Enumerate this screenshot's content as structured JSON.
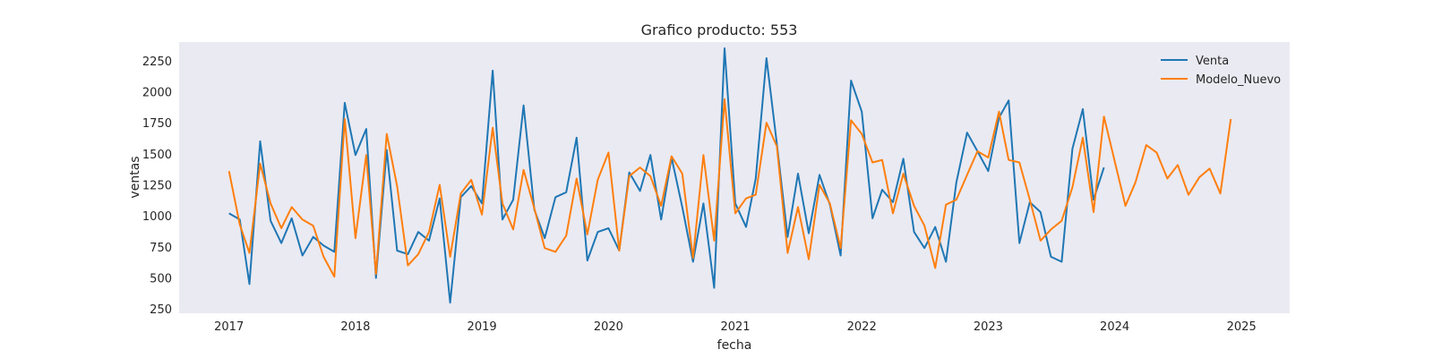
{
  "chart_data": {
    "type": "line",
    "title": "Grafico producto: 553",
    "xlabel": "fecha",
    "ylabel": "ventas",
    "xlim": [
      "2016-08-10",
      "2025-05-20"
    ],
    "ylim": [
      215,
      2400
    ],
    "x_ticks": [
      "2017",
      "2018",
      "2019",
      "2020",
      "2021",
      "2022",
      "2023",
      "2024",
      "2025"
    ],
    "y_ticks": [
      250,
      500,
      750,
      1000,
      1250,
      1500,
      1750,
      2000,
      2250
    ],
    "grid": false,
    "legend_position": "top-right",
    "background": "#EAEAF2",
    "series": [
      {
        "name": "Venta",
        "color": "#1F77B4",
        "x": [
          "2017-01",
          "2017-02",
          "2017-03",
          "2017-04",
          "2017-05",
          "2017-06",
          "2017-07",
          "2017-08",
          "2017-09",
          "2017-10",
          "2017-11",
          "2017-12",
          "2018-01",
          "2018-02",
          "2018-03",
          "2018-04",
          "2018-05",
          "2018-06",
          "2018-07",
          "2018-08",
          "2018-09",
          "2018-10",
          "2018-11",
          "2018-12",
          "2019-01",
          "2019-02",
          "2019-03",
          "2019-04",
          "2019-05",
          "2019-06",
          "2019-07",
          "2019-08",
          "2019-09",
          "2019-10",
          "2019-11",
          "2019-12",
          "2020-01",
          "2020-02",
          "2020-03",
          "2020-04",
          "2020-05",
          "2020-06",
          "2020-07",
          "2020-08",
          "2020-09",
          "2020-10",
          "2020-11",
          "2020-12",
          "2021-01",
          "2021-02",
          "2021-03",
          "2021-04",
          "2021-05",
          "2021-06",
          "2021-07",
          "2021-08",
          "2021-09",
          "2021-10",
          "2021-11",
          "2021-12",
          "2022-01",
          "2022-02",
          "2022-03",
          "2022-04",
          "2022-05",
          "2022-06",
          "2022-07",
          "2022-08",
          "2022-09",
          "2022-10",
          "2022-11",
          "2022-12",
          "2023-01",
          "2023-02",
          "2023-03",
          "2023-04",
          "2023-05",
          "2023-06",
          "2023-07",
          "2023-08",
          "2023-09",
          "2023-10",
          "2023-11",
          "2023-12"
        ],
        "values": [
          1020,
          970,
          450,
          1600,
          960,
          780,
          980,
          680,
          830,
          760,
          710,
          1910,
          1490,
          1700,
          500,
          1530,
          720,
          690,
          870,
          800,
          1140,
          300,
          1150,
          1240,
          1100,
          2170,
          970,
          1130,
          1890,
          1050,
          820,
          1150,
          1190,
          1630,
          640,
          870,
          900,
          720,
          1350,
          1200,
          1490,
          970,
          1470,
          1070,
          630,
          1100,
          420,
          2350,
          1100,
          910,
          1300,
          2270,
          1580,
          830,
          1340,
          860,
          1330,
          1090,
          680,
          2090,
          1840,
          980,
          1210,
          1110,
          1460,
          870,
          740,
          910,
          630,
          1270,
          1670,
          1520,
          1360,
          1790,
          1930,
          780,
          1110,
          1030,
          670,
          630,
          1540,
          1860,
          1130,
          1390
        ]
      },
      {
        "name": "Modelo_Nuevo",
        "color": "#FF7F0E",
        "x": [
          "2017-01",
          "2017-02",
          "2017-03",
          "2017-04",
          "2017-05",
          "2017-06",
          "2017-07",
          "2017-08",
          "2017-09",
          "2017-10",
          "2017-11",
          "2017-12",
          "2018-01",
          "2018-02",
          "2018-03",
          "2018-04",
          "2018-05",
          "2018-06",
          "2018-07",
          "2018-08",
          "2018-09",
          "2018-10",
          "2018-11",
          "2018-12",
          "2019-01",
          "2019-02",
          "2019-03",
          "2019-04",
          "2019-05",
          "2019-06",
          "2019-07",
          "2019-08",
          "2019-09",
          "2019-10",
          "2019-11",
          "2019-12",
          "2020-01",
          "2020-02",
          "2020-03",
          "2020-04",
          "2020-05",
          "2020-06",
          "2020-07",
          "2020-08",
          "2020-09",
          "2020-10",
          "2020-11",
          "2020-12",
          "2021-01",
          "2021-02",
          "2021-03",
          "2021-04",
          "2021-05",
          "2021-06",
          "2021-07",
          "2021-08",
          "2021-09",
          "2021-10",
          "2021-11",
          "2021-12",
          "2022-01",
          "2022-02",
          "2022-03",
          "2022-04",
          "2022-05",
          "2022-06",
          "2022-07",
          "2022-08",
          "2022-09",
          "2022-10",
          "2022-11",
          "2022-12",
          "2023-01",
          "2023-02",
          "2023-03",
          "2023-04",
          "2023-05",
          "2023-06",
          "2023-07",
          "2023-08",
          "2023-09",
          "2023-10",
          "2023-11",
          "2023-12",
          "2024-01",
          "2024-02",
          "2024-03",
          "2024-04",
          "2024-05",
          "2024-06",
          "2024-07",
          "2024-08",
          "2024-09",
          "2024-10",
          "2024-11",
          "2024-12"
        ],
        "values": [
          1360,
          930,
          700,
          1420,
          1100,
          900,
          1070,
          970,
          920,
          670,
          510,
          1780,
          820,
          1490,
          530,
          1660,
          1240,
          600,
          690,
          870,
          1250,
          670,
          1180,
          1290,
          1010,
          1710,
          1100,
          890,
          1370,
          1060,
          740,
          710,
          840,
          1300,
          850,
          1290,
          1510,
          720,
          1320,
          1390,
          1320,
          1080,
          1480,
          1340,
          660,
          1490,
          800,
          1940,
          1020,
          1140,
          1170,
          1750,
          1560,
          700,
          1070,
          650,
          1250,
          1100,
          740,
          1770,
          1660,
          1430,
          1450,
          1020,
          1340,
          1080,
          920,
          580,
          1090,
          1130,
          1330,
          1520,
          1470,
          1840,
          1450,
          1430,
          1130,
          800,
          890,
          960,
          1230,
          1630,
          1030,
          1800,
          1440,
          1080,
          1270,
          1570,
          1510,
          1300,
          1410,
          1170,
          1310,
          1380,
          1180,
          1780
        ]
      }
    ]
  }
}
